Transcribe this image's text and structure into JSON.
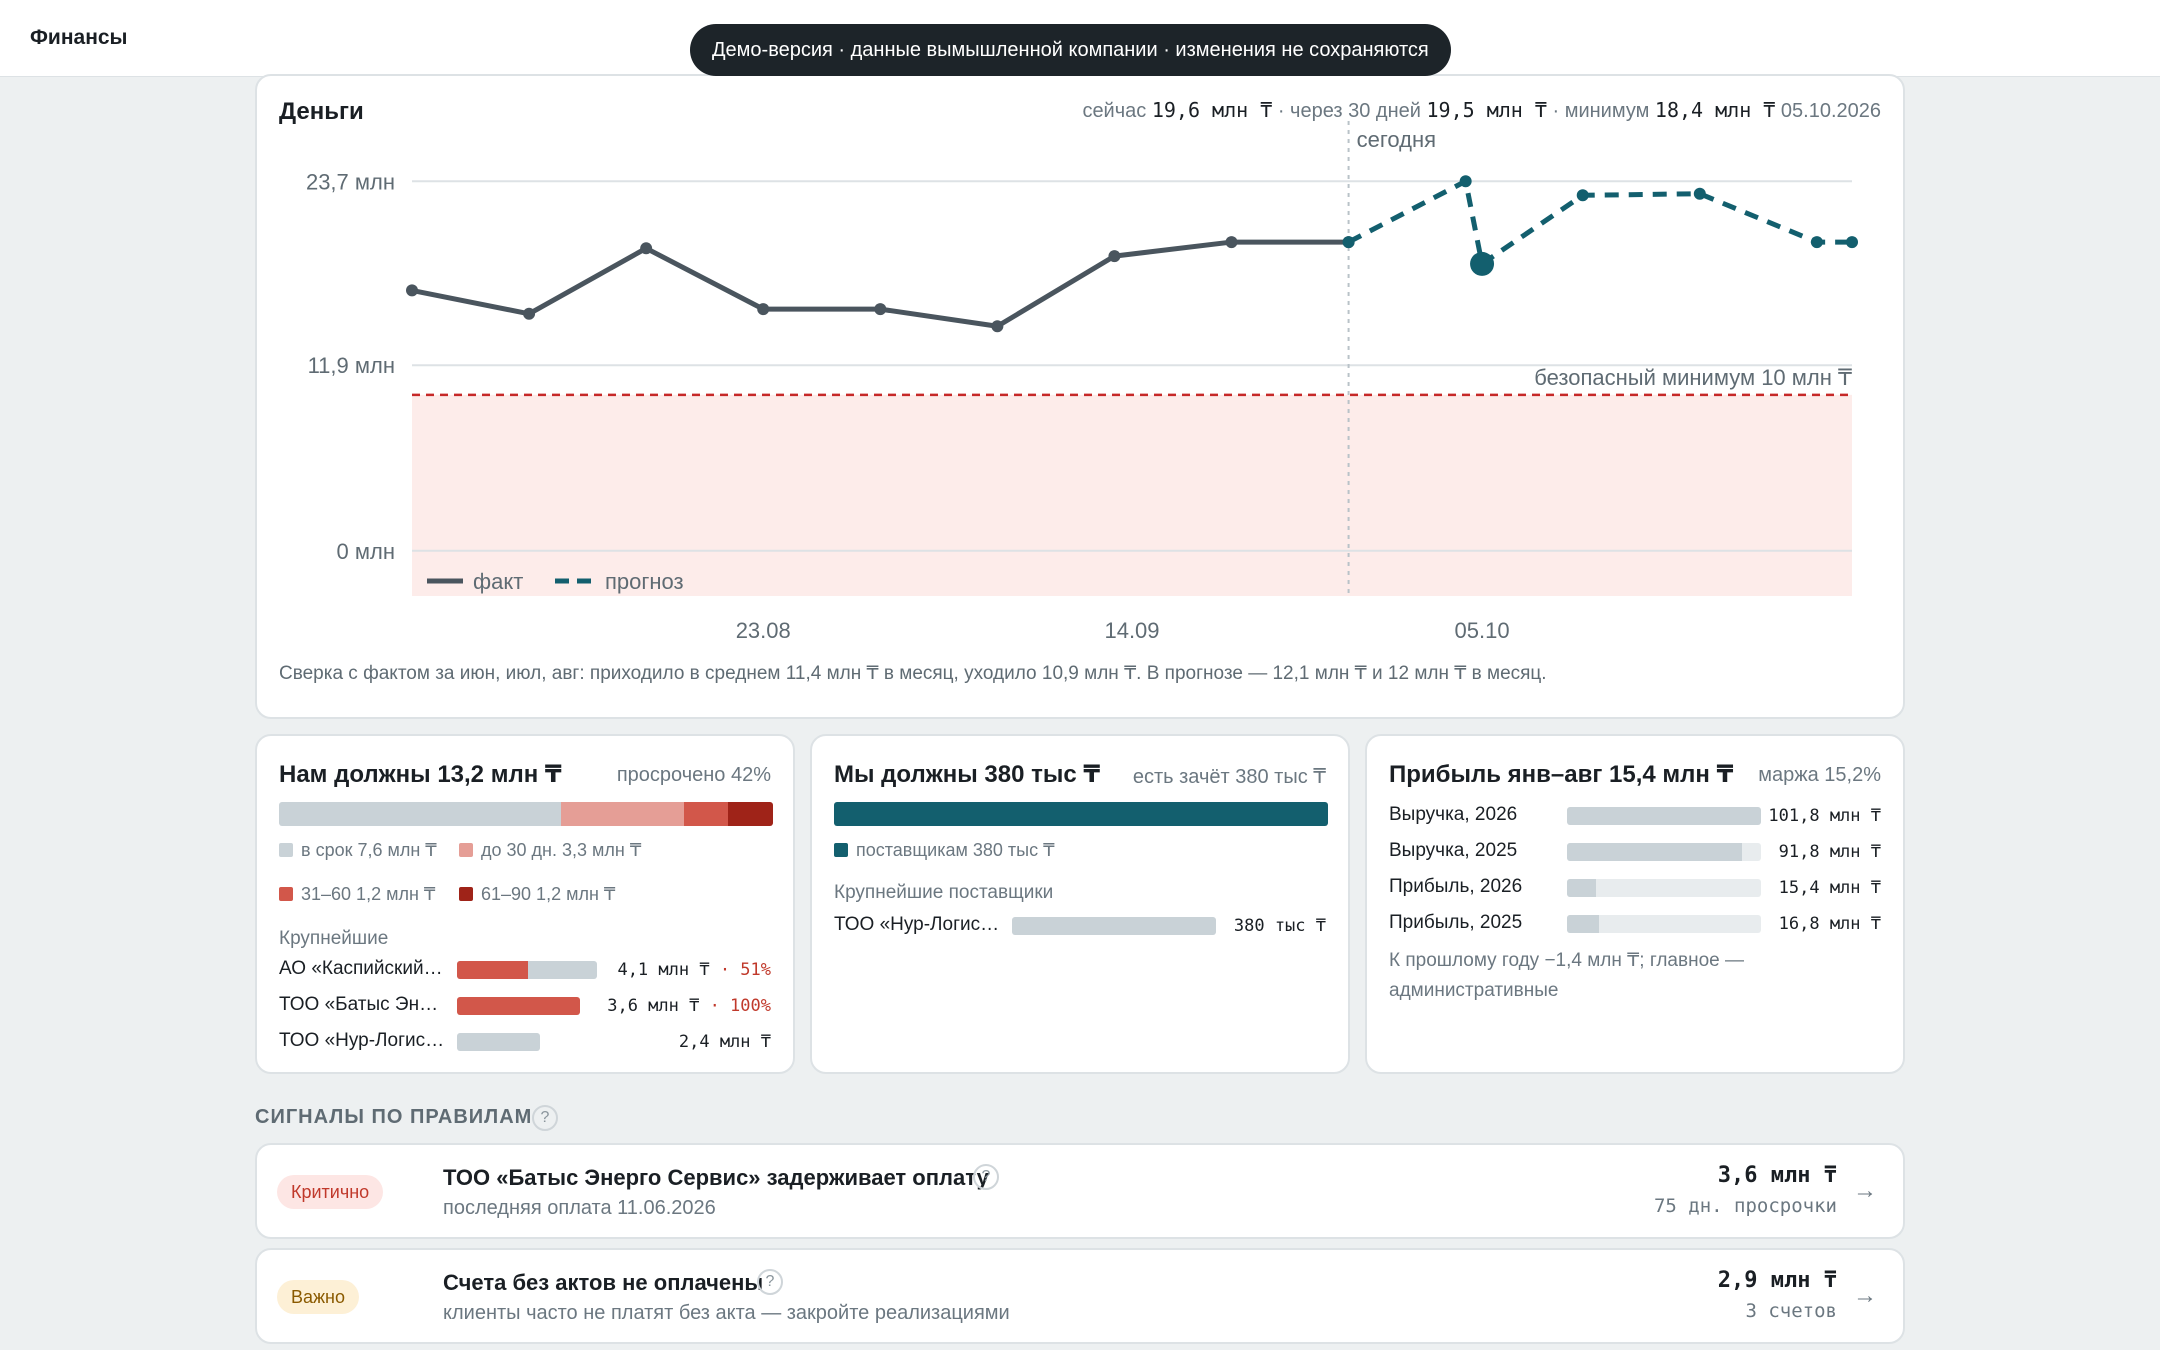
{
  "app": {
    "title": "Финансы",
    "demo_banner": "Демо-версия · данные вымышленной компании · изменения не сохраняются"
  },
  "money": {
    "title": "Деньги",
    "summary": {
      "now_label": "сейчас",
      "now_value": "19,6 млн ₸",
      "in30_label": "· через 30 дней",
      "in30_value": "19,5 млн ₸",
      "min_label": "· минимум",
      "min_value": "18,4 млн ₸",
      "min_date": "05.10.2026"
    },
    "footnote": "Сверка с фактом за июн, июл, авг: приходило в среднем 11,4 млн ₸ в месяц, уходило 10,9 млн ₸. В прогнозе — 12,1 млн ₸ и 12 млн ₸ в месяц."
  },
  "chart_data": {
    "type": "line",
    "y_tick_labels": [
      "0 млн",
      "11,9 млн",
      "23,7 млн"
    ],
    "y_ticks": [
      0,
      11.9,
      23.7
    ],
    "ylim": [
      -2.9,
      25
    ],
    "x_tick_labels": [
      "23.08",
      "14.09",
      "05.10"
    ],
    "series": [
      {
        "name": "факт",
        "style": "solid",
        "color": "#4a555e",
        "points": [
          [
            0,
            16.7
          ],
          [
            1,
            15.2
          ],
          [
            2,
            19.4
          ],
          [
            3,
            15.5
          ],
          [
            4,
            15.5
          ],
          [
            5,
            14.4
          ],
          [
            6,
            18.9
          ],
          [
            7,
            19.8
          ],
          [
            8,
            19.8
          ]
        ]
      },
      {
        "name": "прогноз",
        "style": "dashed",
        "color": "#135f6e",
        "points": [
          [
            8,
            19.8
          ],
          [
            9,
            23.7
          ],
          [
            9.14,
            18.4
          ],
          [
            10,
            22.8
          ],
          [
            11,
            22.9
          ],
          [
            12,
            19.8
          ],
          [
            12.3,
            19.8
          ]
        ]
      }
    ],
    "x_ticks_at": [
      3,
      6.15,
      9.14
    ],
    "today_x": 8,
    "today_label": "сегодня",
    "safe_minimum": 10,
    "safe_minimum_label": "безопасный минимум 10 млн ₸",
    "highlight_point": [
      9.14,
      18.4
    ]
  },
  "receivables": {
    "title": "Нам должны 13,2 млн ₸",
    "overdue": "просрочено 42%",
    "segments": [
      {
        "label": "в срок 7,6 млн ₸",
        "value": 7.6,
        "color": "#c9d2d7"
      },
      {
        "label": "до 30 дн. 3,3 млн ₸",
        "value": 3.3,
        "color": "#e59e96"
      },
      {
        "label": "31–60 1,2 млн ₸",
        "value": 1.2,
        "color": "#d2574a"
      },
      {
        "label": "61–90 1,2 млн ₸",
        "value": 1.2,
        "color": "#9f2318"
      }
    ],
    "top_label": "Крупнейшие",
    "rows": [
      {
        "name": "АО «Каспийский…",
        "value": "4,1 млн ₸",
        "pct": "· 51%",
        "bar_total": 1.0,
        "bar_overdue": 0.51
      },
      {
        "name": "ТОО «Батыс Эне…",
        "value": "3,6 млн ₸",
        "pct": "· 100%",
        "bar_total": 0.88,
        "bar_overdue": 0.88
      },
      {
        "name": "ТОО «Нур-Логис…",
        "value": "2,4 млн ₸",
        "pct": "",
        "bar_total": 0.59,
        "bar_overdue": 0
      }
    ]
  },
  "payables": {
    "title": "Мы должны 380 тыс ₸",
    "offset": "есть зачёт 380 тыс ₸",
    "segment_label": "поставщикам 380 тыс ₸",
    "top_label": "Крупнейшие поставщики",
    "rows": [
      {
        "name": "ТОО «Нур-Логис…",
        "value": "380 тыс ₸",
        "fraction": 1.0
      }
    ]
  },
  "profit": {
    "title": "Прибыль янв–авг 15,4 млн ₸",
    "margin": "маржа 15,2%",
    "rows": [
      {
        "name": "Выручка, 2026",
        "value": "101,8 млн ₸",
        "fraction": 1.0
      },
      {
        "name": "Выручка, 2025",
        "value": "91,8 млн ₸",
        "fraction": 0.9
      },
      {
        "name": "Прибыль, 2026",
        "value": "15,4 млн ₸",
        "fraction": 0.15
      },
      {
        "name": "Прибыль, 2025",
        "value": "16,8 млн ₸",
        "fraction": 0.165
      }
    ],
    "note_line1": "К прошлому году −1,4 млн ₸; главное —",
    "note_line2": "административные"
  },
  "signals": {
    "title": "СИГНАЛЫ ПО ПРАВИЛАМ",
    "help": "?",
    "items": [
      {
        "badge": "Критично",
        "title": "ТОО «Батыс Энерго Сервис» задерживает оплату",
        "subtitle": "последняя оплата 11.06.2026",
        "amount": "3,6 млн ₸",
        "note": "75 дн. просрочки",
        "arrow": "→"
      },
      {
        "badge": "Важно",
        "title": "Счета без актов не оплачены",
        "subtitle": "клиенты часто не платят без акта — закройте реализациями",
        "amount": "2,9 млн ₸",
        "note": "3 счетов",
        "arrow": "→"
      }
    ]
  },
  "colors": {
    "critical_bg": "#fde6e4",
    "critical_fg": "#c0392b",
    "important_bg": "#fdf0d6",
    "important_fg": "#8a5a00",
    "teal": "#135f6e"
  }
}
